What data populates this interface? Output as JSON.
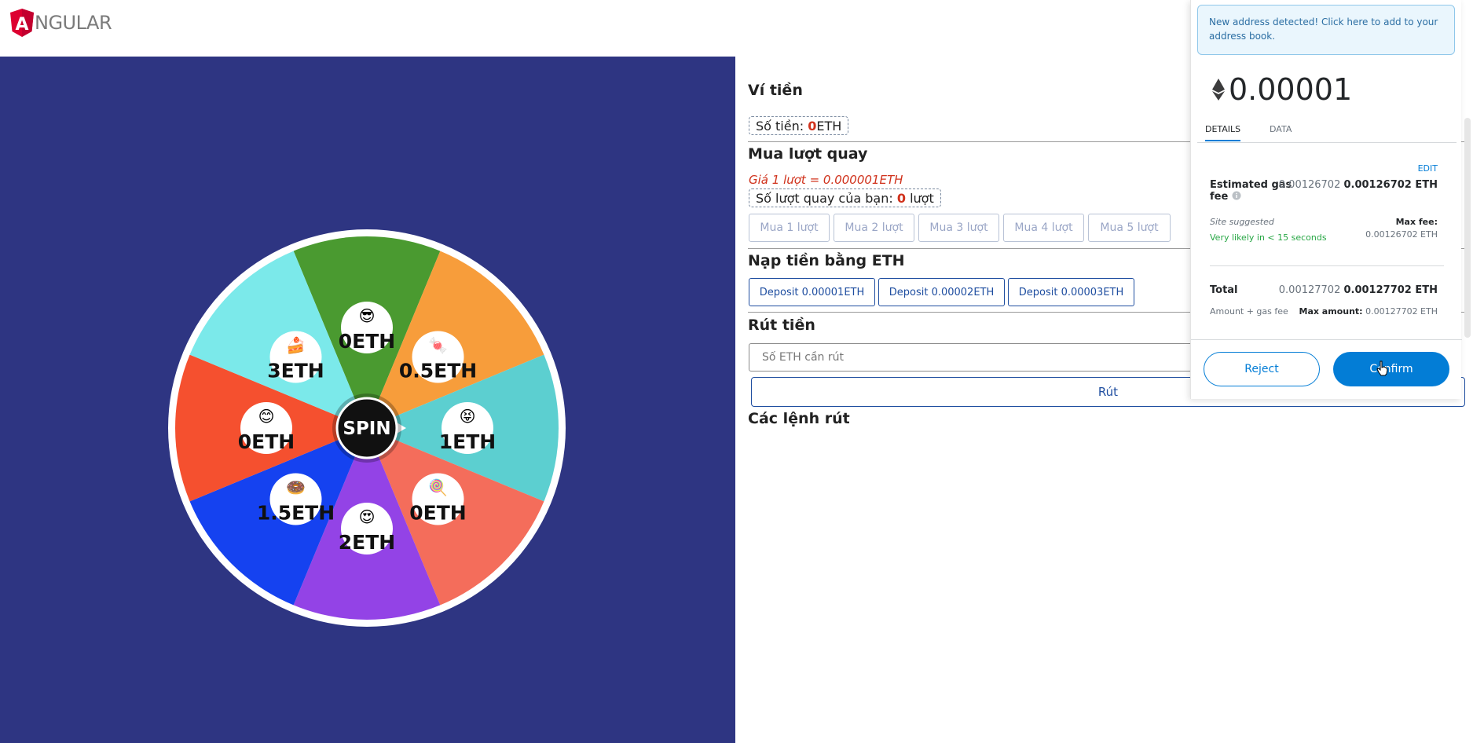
{
  "header": {
    "logo_text": "NGULAR",
    "logo_letter": "A"
  },
  "wheel": {
    "center_label": "SPIN",
    "segments": [
      {
        "label": "0ETH",
        "emoji": "😎",
        "color": "#4a9a30"
      },
      {
        "label": "0.5ETH",
        "emoji": "🍬",
        "color": "#f79d3b"
      },
      {
        "label": "1ETH",
        "emoji": "😝",
        "color": "#5ccfd0"
      },
      {
        "label": "0ETH",
        "emoji": "🍭",
        "color": "#f46d5b"
      },
      {
        "label": "2ETH",
        "emoji": "😍",
        "color": "#9343e6"
      },
      {
        "label": "1.5ETH",
        "emoji": "🍩",
        "color": "#1542f0"
      },
      {
        "label": "0ETH",
        "emoji": "😊",
        "color": "#f5502f"
      },
      {
        "label": "3ETH",
        "emoji": "🍰",
        "color": "#7be9ea"
      }
    ]
  },
  "wallet": {
    "title": "Ví tiền",
    "balance_label": "Số tiền:",
    "balance_value": "0",
    "balance_unit": "ETH"
  },
  "buy": {
    "title": "Mua lượt quay",
    "price": "Giá 1 lượt = 0.000001ETH",
    "spins_label": "Số lượt quay của bạn:",
    "spins_value": "0",
    "spins_unit": "lượt",
    "buttons": [
      "Mua 1 lượt",
      "Mua 2 lượt",
      "Mua 3 lượt",
      "Mua 4 lượt",
      "Mua 5 lượt"
    ]
  },
  "deposit": {
    "title": "Nạp tiền bằng ETH",
    "buttons": [
      "Deposit 0.00001ETH",
      "Deposit 0.00002ETH",
      "Deposit 0.00003ETH"
    ]
  },
  "withdraw": {
    "title": "Rút tiền",
    "placeholder": "Số ETH cần rút",
    "button": "Rút",
    "orders_title": "Các lệnh rút"
  },
  "metamask": {
    "notice": "New address detected! Click here to add to your address book.",
    "amount": "0.00001",
    "tabs": [
      "DETAILS",
      "DATA"
    ],
    "edit": "EDIT",
    "gas_label_1": "Estimated gas",
    "gas_label_2": "fee",
    "gas_value_gray": "0.00126702",
    "gas_value_bold": "0.00126702 ETH",
    "site_suggested": "Site suggested",
    "likely": "Very likely in < 15 seconds",
    "max_fee_label": "Max fee:",
    "max_fee_value": "0.00126702 ETH",
    "total_label": "Total",
    "total_value_gray": "0.00127702",
    "total_value_bold": "0.00127702 ETH",
    "amount_gas_label": "Amount + gas fee",
    "max_amount_label": "Max amount:",
    "max_amount_value": "0.00127702 ETH",
    "reject": "Reject",
    "confirm": "Confirm"
  }
}
